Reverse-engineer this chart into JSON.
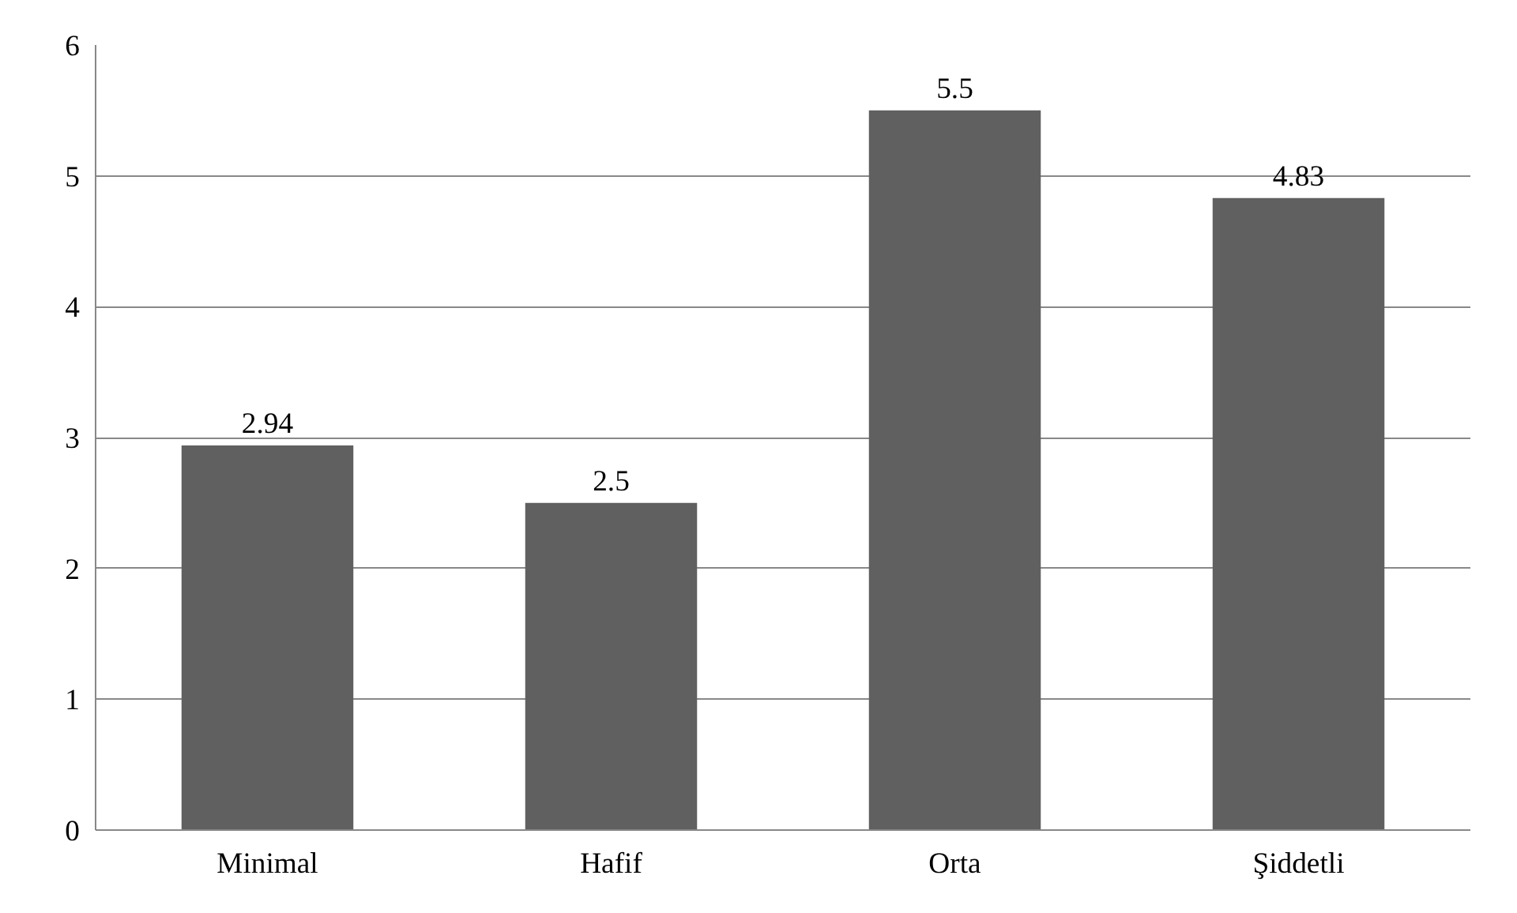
{
  "chart_data": {
    "type": "bar",
    "categories": [
      "Minimal",
      "Hafif",
      "Orta",
      "Şiddetli"
    ],
    "values": [
      2.94,
      2.5,
      5.5,
      4.83
    ],
    "color": "#606060",
    "ylim": [
      0,
      6
    ],
    "yticks": [
      0,
      1,
      2,
      3,
      4,
      5,
      6
    ],
    "grid": "y",
    "data_labels": true
  }
}
